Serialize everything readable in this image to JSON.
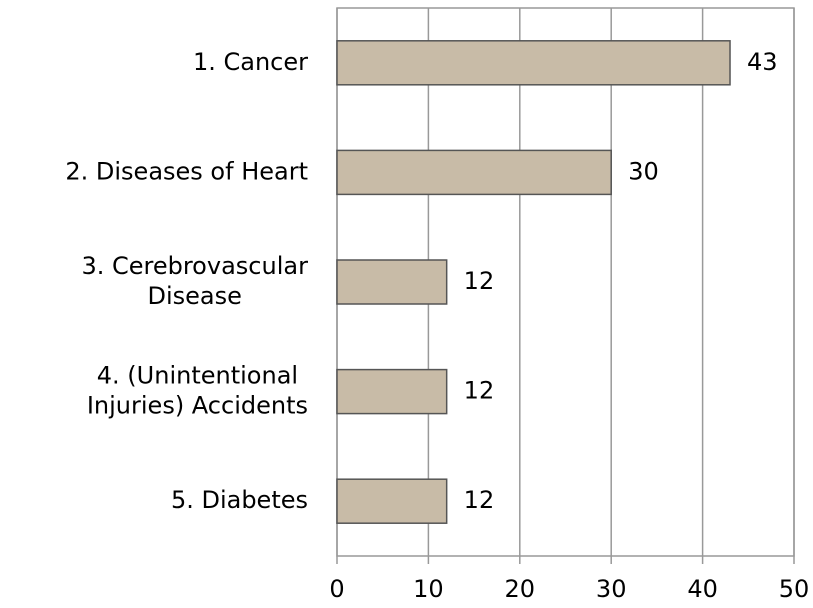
{
  "chart_data": {
    "type": "bar",
    "orientation": "horizontal",
    "categories": [
      "1. Cancer",
      "2. Diseases of Heart",
      "3. Cerebrovascular\nDisease",
      "4. (Unintentional\nInjuries) Accidents",
      "5. Diabetes"
    ],
    "values": [
      43,
      30,
      12,
      12,
      12
    ],
    "color": "#c8bba7",
    "xlim": [
      0,
      50
    ],
    "xticks": [
      0,
      10,
      20,
      30,
      40,
      50
    ],
    "grid": true
  }
}
